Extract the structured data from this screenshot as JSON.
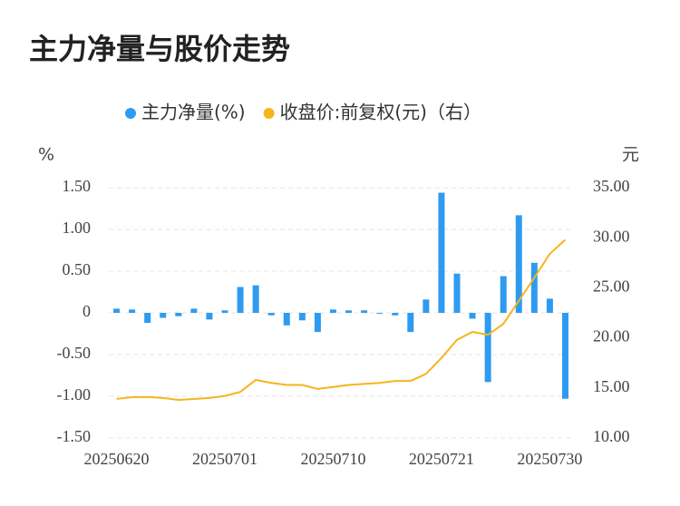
{
  "chart_data": {
    "type": "bar-line",
    "title": "主力净量与股价走势",
    "y_label": "%",
    "y2_label": "元",
    "categories": [
      "20250620",
      null,
      null,
      null,
      null,
      null,
      null,
      "20250701",
      null,
      null,
      null,
      null,
      null,
      null,
      "20250710",
      null,
      null,
      null,
      null,
      null,
      null,
      "20250721",
      null,
      null,
      null,
      null,
      null,
      null,
      "20250730",
      null
    ],
    "series": [
      {
        "name": "主力净量(%)",
        "color": "#2e9bf0",
        "kind": "bar",
        "axis": "y",
        "values": [
          0.05,
          0.04,
          -0.12,
          -0.06,
          -0.04,
          0.05,
          -0.08,
          0.03,
          0.31,
          0.33,
          -0.03,
          -0.15,
          -0.09,
          -0.23,
          0.04,
          0.03,
          0.03,
          -0.01,
          -0.03,
          -0.23,
          0.16,
          1.44,
          0.47,
          -0.07,
          -0.83,
          0.44,
          1.17,
          0.6,
          0.17,
          -1.03
        ]
      },
      {
        "name": "收盘价:前复权(元)（右）",
        "color": "#f5b51c",
        "kind": "line",
        "axis": "y2",
        "values": [
          13.9,
          14.08,
          14.1,
          14.0,
          13.8,
          13.9,
          14.0,
          14.2,
          14.6,
          15.8,
          15.5,
          15.3,
          15.3,
          14.9,
          15.1,
          15.3,
          15.4,
          15.5,
          15.7,
          15.7,
          16.4,
          18.0,
          19.8,
          20.6,
          20.3,
          21.4,
          23.7,
          26.0,
          28.4,
          29.8
        ]
      }
    ],
    "ylim": [
      -1.5,
      1.5
    ],
    "yticks": [
      {
        "value": 1.5,
        "label": "1.50"
      },
      {
        "value": 1,
        "label": "1.00"
      },
      {
        "value": 0.5,
        "label": "0.50"
      },
      0,
      {
        "value": -0.5,
        "label": "-0.50"
      },
      {
        "value": -1,
        "label": "-1.00"
      },
      {
        "value": -1.5,
        "label": "-1.50"
      }
    ],
    "y2lim": [
      10,
      35
    ],
    "y2ticks": [
      {
        "value": 35,
        "label": "35.00"
      },
      {
        "value": 30,
        "label": "30.00"
      },
      {
        "value": 25,
        "label": "25.00"
      },
      {
        "value": 20,
        "label": "20.00"
      },
      {
        "value": 15,
        "label": "15.00"
      },
      {
        "value": 10,
        "label": "10.00"
      }
    ],
    "grid": true,
    "legend": "top"
  }
}
